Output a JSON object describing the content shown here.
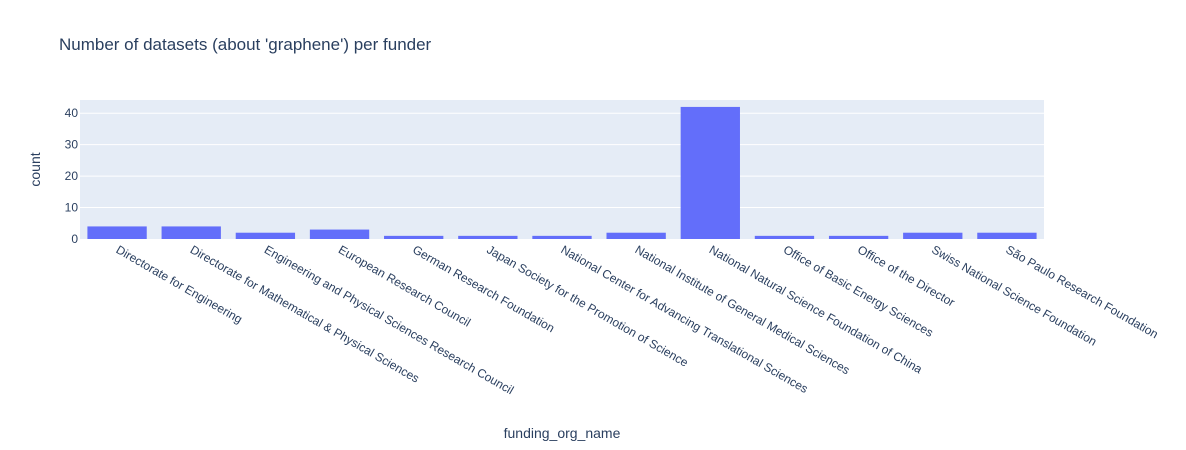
{
  "chart_data": {
    "type": "bar",
    "title": "Number of datasets (about 'graphene') per funder",
    "xlabel": "funding_org_name",
    "ylabel": "count",
    "categories": [
      "Directorate for Engineering",
      "Directorate for Mathematical & Physical Sciences",
      "Engineering and Physical Sciences Research Council",
      "European Research Council",
      "German Research Foundation",
      "Japan Society for the Promotion of Science",
      "National Center for Advancing Translational Sciences",
      "National Institute of General Medical Sciences",
      "National Natural Science Foundation of China",
      "Office of Basic Energy Sciences",
      "Office of the Director",
      "Swiss National Science Foundation",
      "São Paulo Research Foundation"
    ],
    "values": [
      4,
      4,
      2,
      3,
      1,
      1,
      1,
      2,
      42,
      1,
      1,
      2,
      2
    ],
    "ylim": [
      0,
      44.2
    ],
    "yticks": [
      0,
      10,
      20,
      30,
      40
    ],
    "grid": true,
    "colors": {
      "bar": "#636efa",
      "plot_bg": "#e5ecf6",
      "grid": "#ffffff",
      "text": "#2a3f5f"
    }
  }
}
